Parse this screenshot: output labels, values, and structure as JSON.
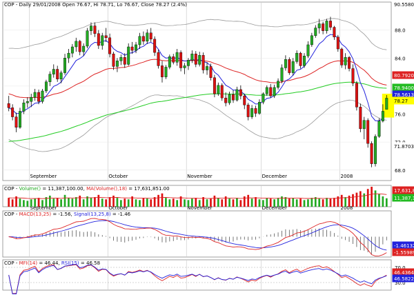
{
  "header": {
    "symbol": "COP",
    "period": "Daily",
    "date": "29/01/2008",
    "open": "76.67",
    "high": "78.71",
    "low": "76.67",
    "close": "78.27",
    "change_pct": "(2.4%)",
    "text": "COP - Daily 29/01/2008 Open 76.67, Hi 78.71, Lo 76.67, Close 78.27 (2.4%)"
  },
  "colors": {
    "up_candle": "#22aa22",
    "down_candle": "#dd1111",
    "ma_blue": "#2222dd",
    "ma_red": "#dd2222",
    "ma_green": "#22cc22",
    "bands": "#999999",
    "highlight": "#ffff00",
    "grid": "#cccccc",
    "axis_text": "#000000"
  },
  "chart_data": [
    {
      "type": "candlestick",
      "panel": "price",
      "x_labels": [
        "September",
        "October",
        "November",
        "December",
        "2008"
      ],
      "y_ticks": [
        68.0,
        72.0,
        76.0,
        80.0,
        84.0,
        88.0
      ],
      "ylim": [
        66.5,
        92.0
      ],
      "value_badges": [
        {
          "value": "90.5580",
          "bg": "#ffffff",
          "fg": "#000000"
        },
        {
          "value": "80.7920",
          "bg": "#dd2222",
          "fg": "#ffffff"
        },
        {
          "value": "78.9400",
          "bg": "#22bb22",
          "fg": "#ffffff"
        },
        {
          "value": "78.5613",
          "bg": "#2222dd",
          "fg": "#ffffff"
        },
        {
          "value": "78.27",
          "bg": "#ffff00",
          "fg": "#000000"
        },
        {
          "value": "71.8703",
          "bg": "#ffffff",
          "fg": "#000000"
        }
      ],
      "ohlc": [
        [
          77.5,
          78.6,
          76.4,
          76.9
        ],
        [
          76.9,
          77.4,
          75.1,
          75.6
        ],
        [
          75.6,
          76.2,
          73.4,
          74.1
        ],
        [
          74.1,
          76.9,
          73.9,
          76.4
        ],
        [
          76.4,
          78.1,
          76.0,
          77.6
        ],
        [
          77.6,
          78.4,
          76.9,
          77.8
        ],
        [
          77.8,
          78.9,
          77.0,
          78.4
        ],
        [
          78.4,
          79.6,
          77.9,
          79.1
        ],
        [
          79.1,
          79.5,
          77.4,
          77.8
        ],
        [
          77.8,
          79.6,
          77.5,
          79.3
        ],
        [
          79.3,
          80.9,
          79.0,
          80.6
        ],
        [
          80.6,
          82.1,
          80.0,
          81.7
        ],
        [
          81.7,
          83.1,
          81.2,
          82.4
        ],
        [
          82.4,
          82.9,
          80.6,
          81.0
        ],
        [
          81.0,
          82.2,
          80.4,
          81.9
        ],
        [
          81.9,
          84.6,
          81.6,
          84.0
        ],
        [
          84.0,
          85.3,
          83.3,
          84.7
        ],
        [
          84.7,
          86.0,
          84.1,
          85.6
        ],
        [
          85.6,
          86.9,
          84.9,
          86.4
        ],
        [
          86.4,
          86.6,
          84.4,
          84.9
        ],
        [
          84.9,
          86.1,
          84.3,
          85.7
        ],
        [
          85.7,
          88.3,
          85.4,
          87.9
        ],
        [
          87.9,
          89.1,
          87.3,
          88.6
        ],
        [
          88.6,
          89.1,
          87.0,
          87.5
        ],
        [
          87.5,
          88.0,
          85.3,
          85.8
        ],
        [
          85.8,
          87.6,
          85.2,
          87.2
        ],
        [
          87.2,
          88.3,
          86.3,
          86.9
        ],
        [
          86.9,
          87.5,
          84.1,
          84.6
        ],
        [
          84.6,
          84.9,
          82.3,
          82.8
        ],
        [
          82.8,
          84.0,
          82.0,
          83.6
        ],
        [
          83.6,
          84.5,
          83.0,
          84.1
        ],
        [
          84.1,
          84.7,
          82.6,
          83.1
        ],
        [
          83.1,
          86.1,
          82.9,
          85.6
        ],
        [
          85.6,
          86.3,
          84.6,
          85.1
        ],
        [
          85.1,
          86.3,
          84.7,
          85.9
        ],
        [
          85.9,
          87.6,
          85.3,
          87.1
        ],
        [
          87.1,
          87.8,
          85.9,
          86.4
        ],
        [
          86.4,
          88.1,
          86.0,
          87.6
        ],
        [
          87.6,
          88.3,
          86.3,
          86.7
        ],
        [
          86.7,
          87.1,
          84.3,
          84.8
        ],
        [
          84.8,
          85.2,
          82.5,
          82.9
        ],
        [
          82.9,
          83.6,
          80.5,
          81.3
        ],
        [
          81.3,
          83.0,
          81.0,
          82.7
        ],
        [
          82.7,
          84.5,
          82.4,
          84.2
        ],
        [
          84.2,
          84.6,
          83.1,
          83.4
        ],
        [
          83.4,
          85.3,
          82.9,
          84.8
        ],
        [
          84.8,
          85.1,
          82.1,
          82.6
        ],
        [
          82.6,
          83.3,
          81.7,
          82.9
        ],
        [
          82.9,
          84.0,
          82.3,
          83.7
        ],
        [
          83.7,
          85.1,
          83.3,
          84.6
        ],
        [
          84.6,
          85.0,
          82.7,
          83.1
        ],
        [
          83.1,
          84.9,
          82.8,
          84.4
        ],
        [
          84.4,
          84.8,
          81.8,
          82.3
        ],
        [
          82.3,
          83.4,
          81.6,
          82.8
        ],
        [
          82.8,
          83.2,
          80.8,
          81.2
        ],
        [
          81.2,
          81.6,
          78.4,
          78.9
        ],
        [
          78.9,
          80.5,
          78.6,
          80.1
        ],
        [
          80.1,
          80.4,
          77.9,
          78.3
        ],
        [
          78.3,
          79.1,
          77.1,
          77.6
        ],
        [
          77.6,
          79.2,
          77.3,
          78.8
        ],
        [
          78.8,
          79.4,
          77.6,
          78.0
        ],
        [
          78.0,
          79.9,
          77.8,
          79.5
        ],
        [
          79.5,
          80.1,
          78.1,
          78.6
        ],
        [
          78.6,
          78.9,
          76.7,
          77.3
        ],
        [
          77.3,
          77.6,
          75.1,
          75.6
        ],
        [
          75.6,
          77.3,
          75.3,
          76.8
        ],
        [
          76.8,
          77.2,
          75.6,
          76.1
        ],
        [
          76.1,
          78.1,
          75.9,
          77.7
        ],
        [
          77.7,
          79.1,
          77.4,
          78.9
        ],
        [
          78.9,
          80.1,
          78.6,
          79.8
        ],
        [
          79.8,
          80.3,
          78.3,
          78.6
        ],
        [
          78.6,
          80.2,
          78.3,
          79.8
        ],
        [
          79.8,
          81.1,
          79.5,
          80.7
        ],
        [
          80.7,
          83.1,
          80.4,
          82.6
        ],
        [
          82.6,
          84.4,
          82.2,
          83.8
        ],
        [
          83.8,
          84.1,
          81.6,
          81.9
        ],
        [
          81.9,
          84.0,
          81.5,
          83.5
        ],
        [
          83.5,
          85.1,
          83.2,
          84.7
        ],
        [
          84.7,
          84.9,
          82.5,
          82.9
        ],
        [
          82.9,
          84.7,
          82.6,
          84.3
        ],
        [
          84.3,
          86.4,
          84.0,
          85.9
        ],
        [
          85.9,
          87.6,
          85.6,
          87.2
        ],
        [
          87.2,
          88.7,
          86.9,
          88.3
        ],
        [
          88.3,
          89.6,
          87.5,
          88.9
        ],
        [
          88.9,
          89.2,
          87.4,
          87.9
        ],
        [
          87.9,
          89.6,
          87.5,
          89.3
        ],
        [
          89.3,
          89.9,
          88.0,
          88.4
        ],
        [
          88.4,
          88.6,
          86.6,
          87.0
        ],
        [
          87.0,
          87.3,
          84.9,
          85.3
        ],
        [
          85.3,
          85.5,
          82.6,
          83.0
        ],
        [
          83.0,
          84.7,
          82.4,
          84.1
        ],
        [
          84.1,
          84.3,
          82.1,
          82.5
        ],
        [
          82.5,
          83.1,
          80.0,
          80.4
        ],
        [
          80.4,
          80.7,
          76.5,
          77.0
        ],
        [
          77.0,
          77.5,
          73.4,
          73.9
        ],
        [
          73.9,
          75.6,
          72.4,
          75.1
        ],
        [
          75.1,
          75.4,
          71.2,
          71.8
        ],
        [
          71.8,
          72.1,
          68.4,
          68.9
        ],
        [
          68.9,
          73.1,
          68.5,
          72.8
        ],
        [
          72.8,
          75.4,
          72.6,
          75.0
        ],
        [
          75.0,
          77.4,
          74.8,
          76.4
        ],
        [
          76.67,
          78.71,
          76.67,
          78.27
        ]
      ]
    },
    {
      "type": "bar",
      "panel": "volume",
      "legend": [
        {
          "text": "COP - ",
          "color": "#000000"
        },
        {
          "text": "Volume()",
          "color": "#22aa22"
        },
        {
          "text": " = 11,387,100.00, ",
          "color": "#000000"
        },
        {
          "text": "MA(Volume(),18)",
          "color": "#dd2222"
        },
        {
          "text": " = 17,631,851.00",
          "color": "#000000"
        }
      ],
      "value_badges": [
        {
          "value": "17,631,8",
          "bg": "#dd2222",
          "fg": "#ffffff"
        },
        {
          "value": "11,387,10",
          "bg": "#22bb22",
          "fg": "#ffffff"
        }
      ],
      "x_labels": [
        "September",
        "October",
        "November",
        "December",
        "2008"
      ],
      "values_millions": [
        12,
        10,
        14,
        11,
        9,
        8,
        10,
        11,
        12,
        9,
        13,
        15,
        11,
        12,
        10,
        16,
        12,
        11,
        13,
        15,
        10,
        14,
        12,
        13,
        16,
        11,
        10,
        13,
        15,
        12,
        9,
        11,
        10,
        14,
        10,
        9,
        12,
        11,
        10,
        13,
        16,
        18,
        12,
        10,
        11,
        9,
        14,
        10,
        9,
        11,
        12,
        9,
        13,
        10,
        11,
        15,
        12,
        10,
        14,
        11,
        10,
        12,
        9,
        14,
        16,
        11,
        13,
        10,
        9,
        12,
        11,
        10,
        12,
        14,
        13,
        11,
        12,
        10,
        11,
        9,
        10,
        12,
        13,
        11,
        10,
        12,
        11,
        12,
        14,
        16,
        13,
        15,
        17,
        19,
        21,
        18,
        24,
        27,
        22,
        17,
        14,
        11.4
      ]
    },
    {
      "type": "line",
      "panel": "macd",
      "legend": [
        {
          "text": "COP - ",
          "color": "#000000"
        },
        {
          "text": "MACD(13,25)",
          "color": "#dd2222"
        },
        {
          "text": " = -1.56, ",
          "color": "#000000"
        },
        {
          "text": "Signal(13,25,8)",
          "color": "#2222dd"
        },
        {
          "text": " = -1.46",
          "color": "#000000"
        }
      ],
      "value_badges": [
        {
          "value": "-1.46132",
          "bg": "#2222dd",
          "fg": "#ffffff"
        },
        {
          "value": "-1.55989",
          "bg": "#dd2222",
          "fg": "#ffffff"
        }
      ]
    },
    {
      "type": "line",
      "panel": "mfi_rsi",
      "legend": [
        {
          "text": "COP - ",
          "color": "#000000"
        },
        {
          "text": "MFI(14)",
          "color": "#dd2222"
        },
        {
          "text": " = 46.44, ",
          "color": "#000000"
        },
        {
          "text": "RSI(15)",
          "color": "#2222dd"
        },
        {
          "text": " = 46.58",
          "color": "#000000"
        }
      ],
      "y_ticks": [
        30.0,
        70.0
      ],
      "value_badges": [
        {
          "value": "46.4364",
          "bg": "#dd2222",
          "fg": "#ffffff"
        },
        {
          "value": "46.5822",
          "bg": "#2222dd",
          "fg": "#ffffff"
        }
      ]
    }
  ]
}
